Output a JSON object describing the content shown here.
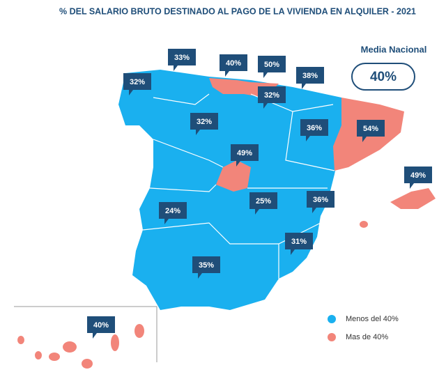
{
  "title": "% DEL SALARIO BRUTO DESTINADO AL PAGO DE LA VIVIENDA EN ALQUILER - 2021",
  "national": {
    "label": "Media Nacional",
    "value": "40%"
  },
  "labels": [
    "33%",
    "40%",
    "50%",
    "38%",
    "32%",
    "32%",
    "32%",
    "36%",
    "54%",
    "49%",
    "49%",
    "24%",
    "25%",
    "36%",
    "31%",
    "35%",
    "40%"
  ],
  "legend": [
    {
      "label": "Menos del 40%",
      "color": "#1ab0ef"
    },
    {
      "label": "Mas de 40%",
      "color": "#f2857a"
    }
  ]
}
